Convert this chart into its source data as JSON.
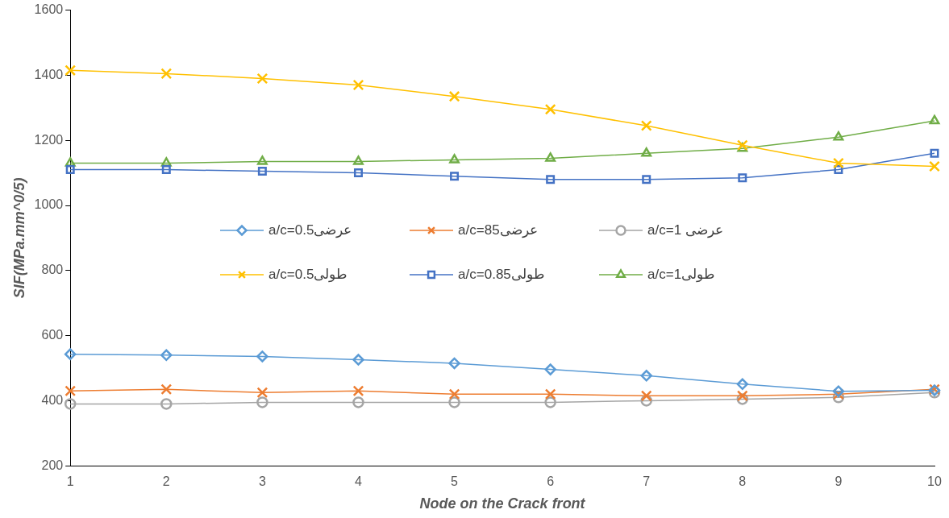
{
  "chart_data": {
    "type": "line",
    "xlabel": "Node on the Crack front",
    "ylabel": "SIF(MPa.mm^0/5)",
    "categories": [
      "1",
      "2",
      "3",
      "4",
      "5",
      "6",
      "7",
      "8",
      "9",
      "10"
    ],
    "ylim": [
      200,
      1600
    ],
    "yticks": [
      200,
      400,
      600,
      800,
      1000,
      1200,
      1400,
      1600
    ],
    "grid": false,
    "legend": "center",
    "series": [
      {
        "name": "a/c=0.5عرضی",
        "color": "#5b9bd5",
        "marker": "diamond",
        "values": [
          543,
          540,
          536,
          526,
          515,
          496,
          477,
          451,
          429,
          432
        ]
      },
      {
        "name": "a/c=85عرضی",
        "color": "#ed7d31",
        "marker": "cross",
        "values": [
          430,
          435,
          425,
          430,
          420,
          420,
          415,
          415,
          420,
          435
        ]
      },
      {
        "name": "a/c=1 عرضی",
        "color": "#a5a5a5",
        "marker": "circle",
        "values": [
          390,
          390,
          395,
          395,
          395,
          395,
          400,
          405,
          410,
          425
        ]
      },
      {
        "name": "a/c=0.5طولی",
        "color": "#ffc000",
        "marker": "cross",
        "values": [
          1415,
          1405,
          1390,
          1370,
          1335,
          1295,
          1245,
          1185,
          1130,
          1120
        ]
      },
      {
        "name": "a/c=0.85طولی",
        "color": "#4472c4",
        "marker": "square",
        "values": [
          1110,
          1110,
          1105,
          1100,
          1090,
          1080,
          1080,
          1085,
          1110,
          1160
        ]
      },
      {
        "name": "a/c=1طولی",
        "color": "#70ad47",
        "marker": "triangle",
        "values": [
          1130,
          1130,
          1135,
          1135,
          1140,
          1145,
          1160,
          1175,
          1210,
          1260
        ]
      }
    ]
  }
}
